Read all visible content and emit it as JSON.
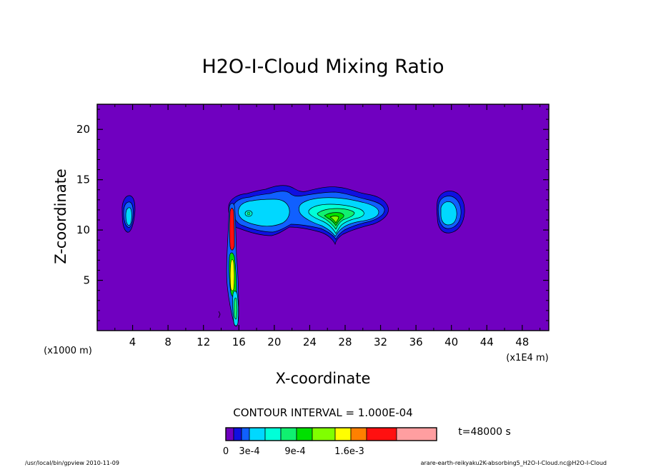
{
  "chart_data": {
    "type": "contour",
    "title": "H2O-I-Cloud Mixing Ratio",
    "xlabel": "X-coordinate",
    "ylabel": "Z-coordinate",
    "x_unit_left": "(x1000 m)",
    "x_unit_right": "(x1E4 m)",
    "x_ticks": [
      4,
      8,
      12,
      16,
      20,
      24,
      28,
      32,
      36,
      40,
      44,
      48
    ],
    "y_ticks": [
      5,
      10,
      15,
      20
    ],
    "xlim": [
      0,
      51
    ],
    "ylim": [
      0,
      22.5
    ],
    "background_color": "#7000c0",
    "contour_interval": "CONTOUR INTERVAL = 1.000E-04",
    "time": "t=48000 s",
    "colorbar": {
      "labels": [
        "0",
        "3e-4",
        "9e-4",
        "1.6e-3"
      ],
      "colors": [
        "#7000c0",
        "#1010e0",
        "#1060ff",
        "#00d8ff",
        "#00ffd8",
        "#10f070",
        "#00e000",
        "#80ff00",
        "#ffff00",
        "#ff8000",
        "#ff1010",
        "#ff9ea0"
      ]
    },
    "regions": [
      {
        "name": "cloud-left",
        "x": 3.7,
        "z": 12.0
      },
      {
        "name": "cloud-upper-band",
        "x": 23.0,
        "z": 12.5
      },
      {
        "name": "cloud-column",
        "x": 15.5,
        "z": 6.0
      },
      {
        "name": "cloud-right",
        "x": 39.5,
        "z": 12.0
      }
    ]
  },
  "footer": {
    "left": "/usr/local/bin/gpview 2010-11-09",
    "right": "arare-earth-reikyaku2K-absorbing5_H2O-I-Cloud.nc@H2O-I-Cloud"
  }
}
